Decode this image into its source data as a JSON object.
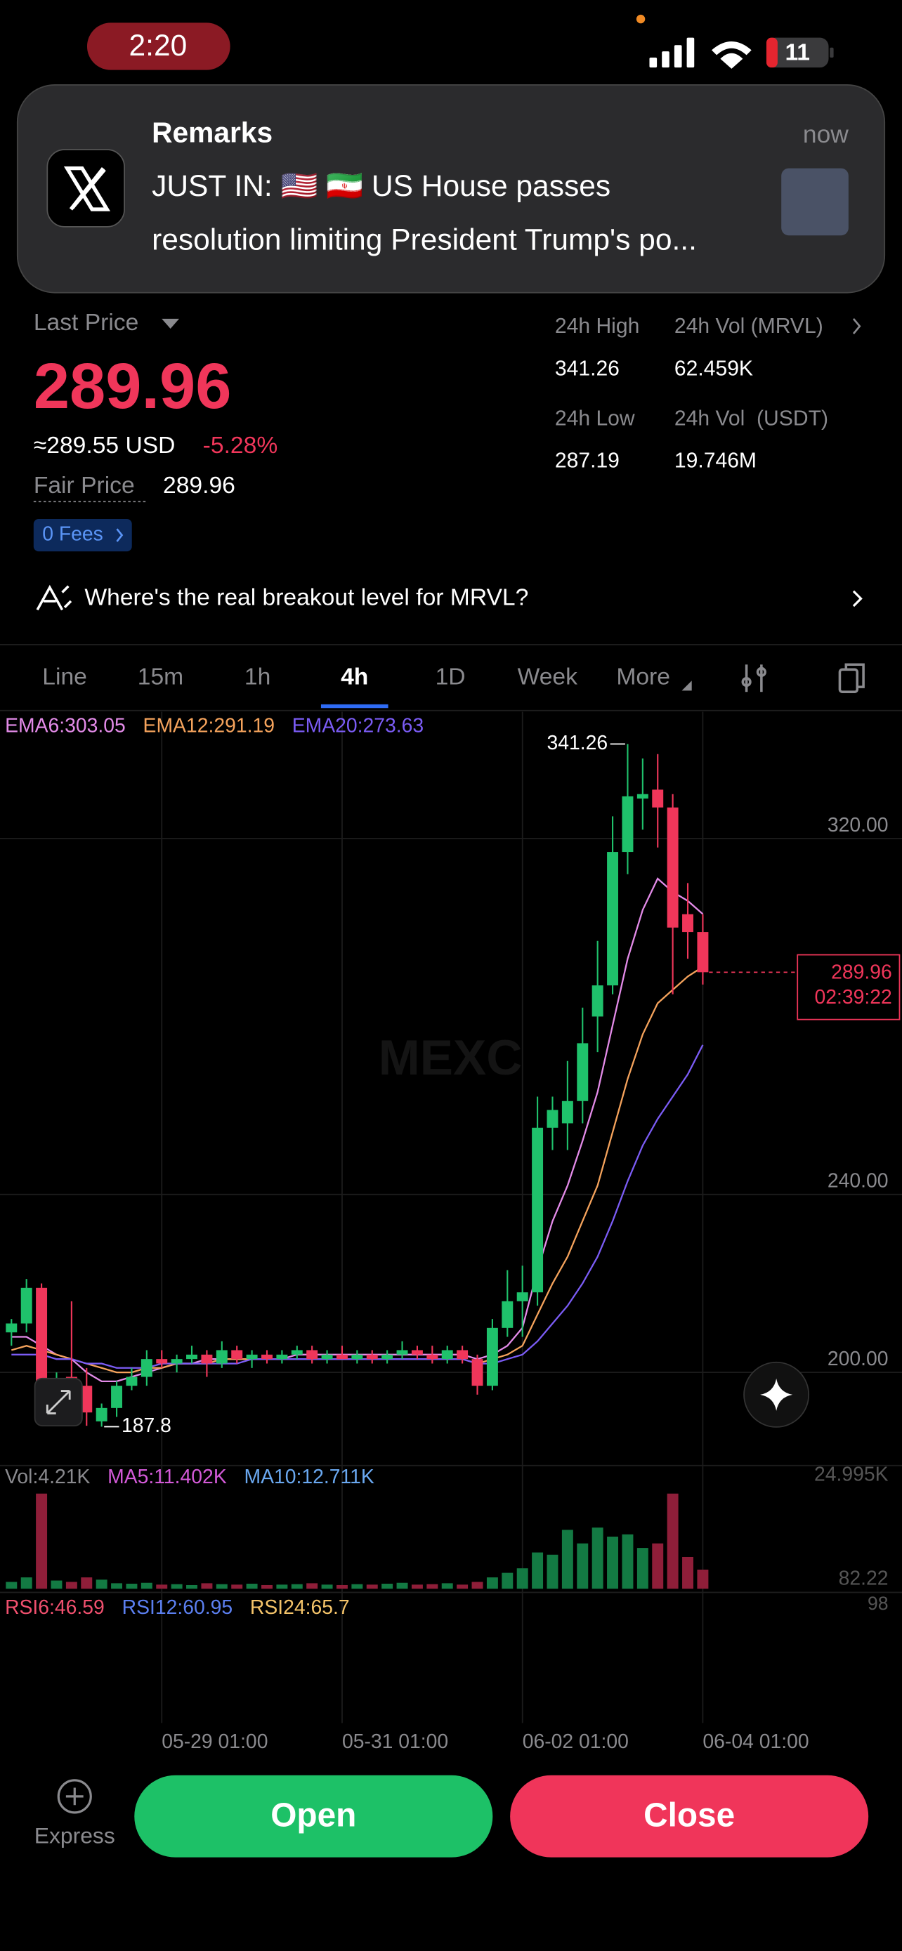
{
  "status": {
    "time": "2:20",
    "battery": "11"
  },
  "notification": {
    "title": "Remarks",
    "time": "now",
    "line1": "JUST IN: 🇺🇸 🇮🇷 US House passes",
    "line2": "resolution limiting President Trump's po..."
  },
  "ticker": {
    "price_label": "Last Price",
    "price": "289.96",
    "usd": "≈289.55 USD",
    "change": "-5.28%",
    "fair_label": "Fair Price",
    "fair": "289.96",
    "fees": "0 Fees",
    "stats": [
      {
        "label": "24h High",
        "value": "341.26"
      },
      {
        "label": "24h Vol (MRVL)",
        "value": "62.459K"
      },
      {
        "label": "24h Low",
        "value": "287.19"
      },
      {
        "label": "24h Vol  (USDT)",
        "value": "19.746M"
      }
    ]
  },
  "ai_prompt": "Where's the real breakout level for MRVL?",
  "tabs": [
    "Line",
    "15m",
    "1h",
    "4h",
    "1D",
    "Week",
    "More"
  ],
  "chart_data": {
    "type": "candlestick",
    "watermark": "MEXC",
    "categories": [
      null,
      null,
      null,
      null,
      null,
      null,
      null,
      null,
      null,
      null,
      "05-29 01:00",
      null,
      null,
      null,
      null,
      null,
      null,
      null,
      null,
      null,
      null,
      null,
      "05-31 01:00",
      null,
      null,
      null,
      null,
      null,
      null,
      null,
      null,
      null,
      null,
      null,
      "06-02 01:00",
      null,
      null,
      null,
      null,
      null,
      null,
      null,
      null,
      null,
      null,
      null,
      "06-04 01:00"
    ],
    "open": [
      209,
      211,
      219,
      196,
      199,
      197,
      189,
      192,
      197,
      199,
      203,
      202,
      203,
      204,
      202,
      205,
      203,
      204,
      203,
      204,
      205,
      203,
      204,
      203,
      204,
      203,
      204,
      205,
      204,
      203,
      205,
      203,
      197,
      210,
      216,
      218,
      255,
      256,
      261,
      280,
      287,
      317,
      329,
      331,
      327,
      303,
      299
    ],
    "high": [
      212,
      221,
      220,
      200,
      216,
      201,
      193,
      198,
      201,
      205,
      205,
      204,
      206,
      205,
      207,
      206,
      205,
      205,
      205,
      206,
      206,
      205,
      206,
      205,
      205,
      205,
      207,
      206,
      206,
      206,
      206,
      204,
      212,
      223,
      224,
      262,
      262,
      270,
      282,
      297,
      325,
      341.26,
      338,
      339,
      330,
      310,
      303
    ],
    "low": [
      206,
      209,
      193,
      194,
      190,
      188,
      187.8,
      190,
      196,
      197,
      201,
      200,
      202,
      199,
      201,
      202,
      201,
      202,
      202,
      203,
      202,
      202,
      203,
      202,
      202,
      202,
      203,
      203,
      202,
      202,
      202,
      195,
      196,
      208,
      208,
      215,
      250,
      250,
      256,
      272,
      285,
      312,
      322,
      318,
      285,
      293,
      287.19
    ],
    "close": [
      211,
      219,
      196,
      198,
      197,
      191,
      192,
      197,
      199,
      203,
      202,
      203,
      204,
      202,
      205,
      203,
      204,
      203,
      204,
      205,
      203,
      204,
      203,
      204,
      203,
      204,
      205,
      204,
      203,
      205,
      203,
      197,
      210,
      216,
      218,
      255,
      259,
      261,
      274,
      287,
      317,
      329.5,
      330,
      327,
      300,
      299,
      289.96
    ],
    "ylim": [
      179.9,
      348.5
    ],
    "yticks": [
      {
        "value": 200,
        "label": "200.00"
      },
      {
        "value": 240,
        "label": "240.00"
      },
      {
        "value": 320,
        "label": "320.00"
      }
    ],
    "ema": [
      {
        "name": "EMA6:303.05",
        "color": "#e38be8",
        "values": [
          208,
          208,
          206,
          204,
          203,
          200,
          198,
          198,
          199,
          200,
          201,
          202,
          202,
          203,
          203,
          203,
          203,
          203,
          203,
          204,
          204,
          204,
          204,
          204,
          204,
          204,
          204,
          204,
          204,
          204,
          204,
          203,
          204,
          206,
          210,
          223,
          234,
          242,
          252,
          263,
          278,
          293,
          304,
          311,
          308,
          306,
          303.05
        ]
      },
      {
        "name": "EMA12:291.19",
        "color": "#f5a35c",
        "values": [
          205,
          206,
          205,
          204,
          203,
          202,
          201,
          200,
          200,
          201,
          201,
          202,
          202,
          202,
          203,
          203,
          203,
          203,
          203,
          203,
          203,
          203,
          203,
          203,
          203,
          203,
          203,
          203,
          203,
          203,
          203,
          202,
          203,
          204,
          206,
          213,
          220,
          226,
          234,
          242,
          254,
          266,
          276,
          283,
          286,
          289,
          291.19
        ]
      },
      {
        "name": "EMA20:273.63",
        "color": "#7b5cf5",
        "values": [
          204,
          204,
          204,
          203,
          203,
          202,
          202,
          201,
          201,
          201,
          202,
          202,
          202,
          202,
          202,
          202,
          203,
          203,
          203,
          203,
          203,
          203,
          203,
          203,
          203,
          203,
          203,
          203,
          203,
          203,
          203,
          202,
          202,
          203,
          204,
          207,
          211,
          215,
          220,
          226,
          234,
          243,
          251,
          257,
          262,
          267,
          273.63
        ]
      }
    ],
    "high_label": "341.26",
    "low_label": "187.8",
    "last_price": "289.96",
    "countdown": "02:39:22",
    "up_color": "#1fc16b",
    "down_color": "#f0365a",
    "volume": {
      "legend": [
        {
          "text": "Vol:4.21K",
          "color": "#8a8a8e"
        },
        {
          "text": "MA5:11.402K",
          "color": "#d35ad8"
        },
        {
          "text": "MA10:12.711K",
          "color": "#6aa8f0"
        }
      ],
      "ylim": [
        0,
        24995
      ],
      "yticks": [
        {
          "value": 24995,
          "label": "24.995K"
        },
        {
          "value": 82.22,
          "label": "82.22"
        }
      ],
      "values": [
        1500,
        2500,
        21000,
        1800,
        1500,
        2500,
        2000,
        1200,
        1100,
        1300,
        900,
        1000,
        800,
        1200,
        1000,
        900,
        1100,
        800,
        900,
        1000,
        1200,
        900,
        800,
        1000,
        900,
        1100,
        1300,
        900,
        1000,
        1200,
        900,
        1500,
        2500,
        3500,
        4500,
        8000,
        7500,
        13000,
        10000,
        13500,
        11500,
        12000,
        9000,
        10000,
        21000,
        7000,
        4210
      ]
    },
    "rsi": {
      "legend": [
        {
          "text": "RSI6:46.59",
          "color": "#f0506e"
        },
        {
          "text": "RSI12:60.95",
          "color": "#5b7ff0"
        },
        {
          "text": "RSI24:65.7",
          "color": "#f5c46a"
        }
      ],
      "top_label": "98"
    }
  },
  "footer": {
    "express": "Express",
    "open": "Open",
    "close": "Close"
  }
}
